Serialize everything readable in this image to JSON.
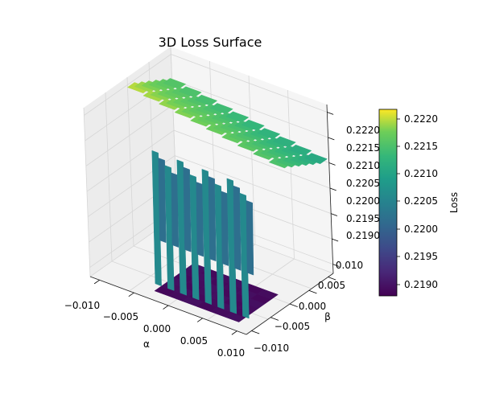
{
  "chart_data": {
    "type": "surface3d",
    "title": "3D Loss Surface",
    "xlabel": "α",
    "ylabel": "β",
    "zlabel": "Loss",
    "x_ticks": [
      "−0.010",
      "−0.005",
      "0.000",
      "0.005",
      "0.010"
    ],
    "y_ticks": [
      "−0.010",
      "−0.005",
      "0.000",
      "0.005",
      "0.010"
    ],
    "z_ticks": [
      "0.2190",
      "0.2195",
      "0.2200",
      "0.2205",
      "0.2210",
      "0.2215",
      "0.2220"
    ],
    "colorbar": {
      "label": "Loss",
      "ticks": [
        "0.2190",
        "0.2195",
        "0.2200",
        "0.2205",
        "0.2210",
        "0.2215",
        "0.2220"
      ],
      "range": [
        0.21882,
        0.22215
      ],
      "colormap": "viridis"
    },
    "xlim": [
      -0.01,
      0.01
    ],
    "ylim": [
      -0.01,
      0.01
    ],
    "zlim": [
      0.21882,
      0.22215
    ],
    "grid": true,
    "surface": {
      "description_levels": {
        "high_plateau": 0.2215,
        "mid_wall": 0.2202,
        "low_floor": 0.2189
      }
    }
  }
}
